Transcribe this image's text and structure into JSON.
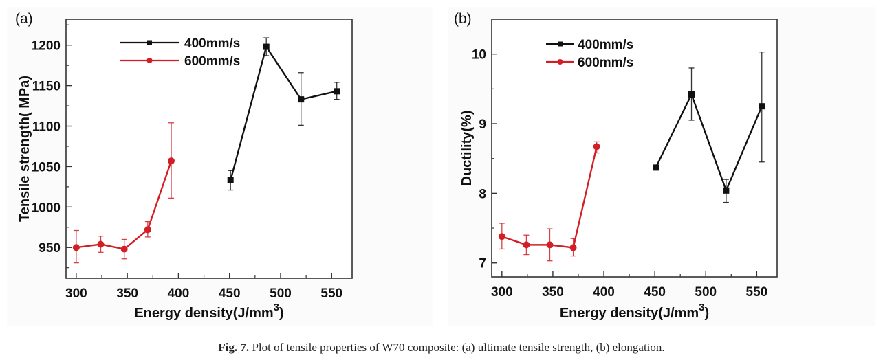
{
  "caption": {
    "label": "Fig. 7.",
    "text": " Plot of tensile properties of W70 composite: (a) ultimate tensile strength, (b) elongation."
  },
  "colors": {
    "series_400": "#111111",
    "series_600": "#d21f26",
    "axis": "#333333"
  },
  "chart_data": [
    {
      "panel_label": "(a)",
      "type": "line",
      "title": "",
      "xlabel": "Energy density(J/mm",
      "xlabel_sup": "3",
      "xlabel_end": ")",
      "ylabel": "Tensile strength( MPa)",
      "xlim": [
        290,
        570
      ],
      "ylim": [
        912,
        1232
      ],
      "xticks": [
        300,
        350,
        400,
        450,
        500,
        550
      ],
      "xminor": [
        325,
        375,
        425,
        475,
        525
      ],
      "yticks": [
        950,
        1000,
        1050,
        1100,
        1150,
        1200
      ],
      "yminor": [
        925,
        975,
        1025,
        1075,
        1125,
        1175,
        1225
      ],
      "grid": false,
      "legend_position": "top-left",
      "series": [
        {
          "name": "400mm/s",
          "color": "#111111",
          "marker": "square",
          "x": [
            451,
            486,
            520,
            555
          ],
          "y": [
            1033,
            1198,
            1133,
            1143
          ],
          "err_low": [
            1021,
            1187,
            1101,
            1133
          ],
          "err_high": [
            1045,
            1209,
            1166,
            1154
          ]
        },
        {
          "name": "600mm/s",
          "color": "#d21f26",
          "marker": "circle",
          "x": [
            300,
            324,
            347,
            370,
            393
          ],
          "y": [
            950,
            954,
            948,
            972,
            1057
          ],
          "err_low": [
            931,
            944,
            936,
            963,
            1011
          ],
          "err_high": [
            971,
            964,
            960,
            982,
            1104
          ]
        }
      ]
    },
    {
      "panel_label": "(b)",
      "type": "line",
      "title": "",
      "xlabel": "Energy density(J/mm",
      "xlabel_sup": "3",
      "xlabel_end": ")",
      "ylabel": "Ductility(%)",
      "xlim": [
        290,
        570
      ],
      "ylim": [
        6.8,
        10.5
      ],
      "xticks": [
        300,
        350,
        400,
        450,
        500,
        550
      ],
      "xminor": [
        325,
        375,
        425,
        475,
        525
      ],
      "yticks": [
        7,
        8,
        9,
        10
      ],
      "yminor": [
        7.5,
        8.5,
        9.5
      ],
      "grid": false,
      "legend_position": "top-left",
      "series": [
        {
          "name": "400mm/s",
          "color": "#111111",
          "marker": "square",
          "x": [
            451,
            486,
            520,
            555
          ],
          "y": [
            8.37,
            9.42,
            8.04,
            9.25
          ],
          "err_low": [
            8.37,
            9.05,
            7.87,
            8.45
          ],
          "err_high": [
            8.37,
            9.8,
            8.2,
            10.03
          ]
        },
        {
          "name": "600mm/s",
          "color": "#d21f26",
          "marker": "circle",
          "x": [
            300,
            324,
            347,
            370,
            393
          ],
          "y": [
            7.38,
            7.26,
            7.26,
            7.22,
            8.67
          ],
          "err_low": [
            7.2,
            7.12,
            7.03,
            7.1,
            8.58
          ],
          "err_high": [
            7.57,
            7.4,
            7.49,
            7.35,
            8.74
          ]
        }
      ]
    }
  ]
}
